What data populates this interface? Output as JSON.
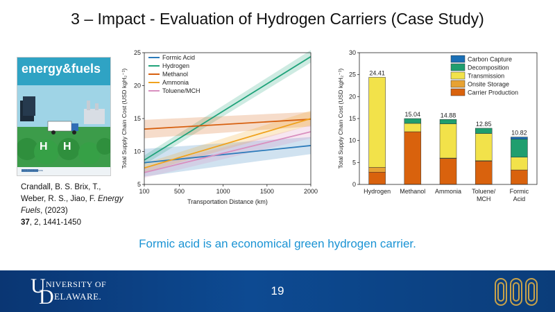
{
  "slide": {
    "title": "3 – Impact - Evaluation of Hydrogen Carriers (Case Study)",
    "caption": "Formic acid is an economical green hydrogen carrier.",
    "page_number": "19"
  },
  "citation": {
    "authors": "Crandall, B. S. Brix, T., Weber, R. S., Jiao, F.",
    "journal": "Energy Fuels",
    "year": ", (2023)",
    "volume": "37",
    "issue_pages": ", 2, 1441-1450"
  },
  "cover": {
    "journal_title": "energy&fuels",
    "badge_letter": "H",
    "publisher": "ACS Publications"
  },
  "footer": {
    "logo_first_letter": "U",
    "logo_second_letter": "D",
    "logo_line1": "NIVERSITY OF",
    "logo_line2": "ELAWARE."
  },
  "colors": {
    "footer_bg": "#0b3d7a",
    "caption": "#1a93d4",
    "formic_acid": "#2b7bba",
    "hydrogen": "#1fa37a",
    "methanol": "#d7600f",
    "ammonia": "#f0a21d",
    "toluene_mch": "#d98fbf",
    "carbon_capture": "#1a6fb5",
    "decomposition": "#1f9e6e",
    "transmission": "#f2e24a",
    "onsite_storage": "#e7a233",
    "carrier_production": "#d9620d"
  },
  "chart_data": [
    {
      "type": "line",
      "xlabel": "Transportation Distance (km)",
      "ylabel": "Total Supply Chain Cost (USD kgH₂⁻¹)",
      "xlim": [
        100,
        2000
      ],
      "ylim": [
        5,
        25
      ],
      "xticks": [
        100,
        500,
        1000,
        1500,
        2000
      ],
      "yticks": [
        5,
        10,
        15,
        20,
        25
      ],
      "legend_position": "top-left",
      "series": [
        {
          "name": "Formic Acid",
          "x": [
            100,
            2000
          ],
          "y": [
            8.3,
            10.9
          ],
          "band": [
            [
              6.2,
              10.4
            ],
            [
              9.6,
              12.2
            ]
          ],
          "color": "#2b7bba"
        },
        {
          "name": "Hydrogen",
          "x": [
            100,
            2000
          ],
          "y": [
            8.7,
            24.4
          ],
          "band": [
            [
              8.0,
              9.4
            ],
            [
              23.5,
              25.4
            ]
          ],
          "color": "#1fa37a"
        },
        {
          "name": "Methanol",
          "x": [
            100,
            2000
          ],
          "y": [
            13.4,
            14.9
          ],
          "band": [
            [
              12.0,
              14.8
            ],
            [
              13.8,
              16.0
            ]
          ],
          "color": "#d7600f"
        },
        {
          "name": "Ammonia",
          "x": [
            100,
            2000
          ],
          "y": [
            7.5,
            15.0
          ],
          "band": [
            [
              6.8,
              8.2
            ],
            [
              14.0,
              16.2
            ]
          ],
          "color": "#f0a21d"
        },
        {
          "name": "Toluene/MCH",
          "x": [
            100,
            2000
          ],
          "y": [
            6.8,
            13.0
          ],
          "band": [
            [
              6.0,
              7.6
            ],
            [
              12.0,
              14.0
            ]
          ],
          "color": "#d98fbf"
        }
      ]
    },
    {
      "type": "bar",
      "stacked": true,
      "ylabel": "Total Supply Chain Cost (USD kgH₂⁻¹)",
      "ylim": [
        0,
        30
      ],
      "yticks": [
        0,
        5,
        10,
        15,
        20,
        25,
        30
      ],
      "legend_position": "top-right",
      "categories": [
        "Hydrogen",
        "Methanol",
        "Ammonia",
        "Toluene/\nMCH",
        "Formic\nAcid"
      ],
      "totals": [
        "24.41",
        "15.04",
        "14.88",
        "12.85",
        "10.82"
      ],
      "series": [
        {
          "name": "Carrier Production",
          "values": [
            2.8,
            12.0,
            5.9,
            5.3,
            3.3
          ],
          "color": "#d9620d"
        },
        {
          "name": "Onsite Storage",
          "values": [
            1.1,
            0.0,
            0.1,
            0.1,
            0.0
          ],
          "color": "#e7a233"
        },
        {
          "name": "Transmission",
          "values": [
            20.5,
            1.9,
            7.8,
            6.2,
            2.9
          ],
          "color": "#f2e24a"
        },
        {
          "name": "Decomposition",
          "values": [
            0.0,
            1.1,
            1.0,
            1.2,
            4.1
          ],
          "color": "#1f9e6e"
        },
        {
          "name": "Carbon Capture",
          "values": [
            0.0,
            0.0,
            0.0,
            0.0,
            0.5
          ],
          "color": "#1a6fb5"
        }
      ]
    }
  ]
}
